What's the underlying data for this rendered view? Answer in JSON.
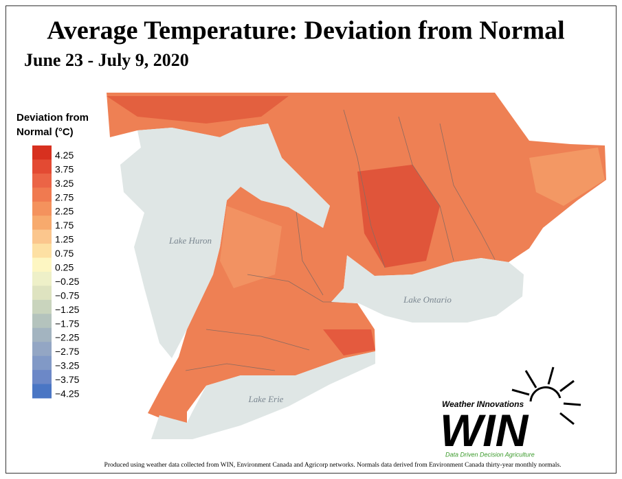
{
  "header": {
    "title": "Average Temperature: Deviation from Normal",
    "subtitle": "June 23 - July 9, 2020"
  },
  "legend": {
    "title": [
      "Deviation from",
      "Normal (°C)"
    ],
    "items": [
      {
        "label": "4.25",
        "color": "#d7301f"
      },
      {
        "label": "3.75",
        "color": "#e34a33"
      },
      {
        "label": "3.25",
        "color": "#eb6446"
      },
      {
        "label": "2.75",
        "color": "#f07a50"
      },
      {
        "label": "2.25",
        "color": "#f4925d"
      },
      {
        "label": "1.75",
        "color": "#f7aa6d"
      },
      {
        "label": "1.25",
        "color": "#fbc68d"
      },
      {
        "label": "0.75",
        "color": "#fde0a3"
      },
      {
        "label": "0.25",
        "color": "#fdf6c2"
      },
      {
        "label": "−0.25",
        "color": "#eef0c8"
      },
      {
        "label": "−0.75",
        "color": "#dee3c0"
      },
      {
        "label": "−1.25",
        "color": "#c9d4bd"
      },
      {
        "label": "−1.75",
        "color": "#b4c3bd"
      },
      {
        "label": "−2.25",
        "color": "#a3b4c0"
      },
      {
        "label": "−2.75",
        "color": "#93a6c4"
      },
      {
        "label": "−3.25",
        "color": "#8199c6"
      },
      {
        "label": "−3.75",
        "color": "#6c88c7"
      },
      {
        "label": "−4.25",
        "color": "#4a76c4"
      }
    ]
  },
  "map": {
    "lakes": [
      "Lake Huron",
      "Lake Ontario",
      "Lake Erie"
    ]
  },
  "logo": {
    "tagline": "Weather INnovations",
    "name": "WIN",
    "slogan": "Data Driven Decision Agriculture"
  },
  "footer": "Produced using weather data collected from WIN, Environment Canada and Agricorp networks. Normals data derived from Environment Canada thirty-year monthly normals."
}
